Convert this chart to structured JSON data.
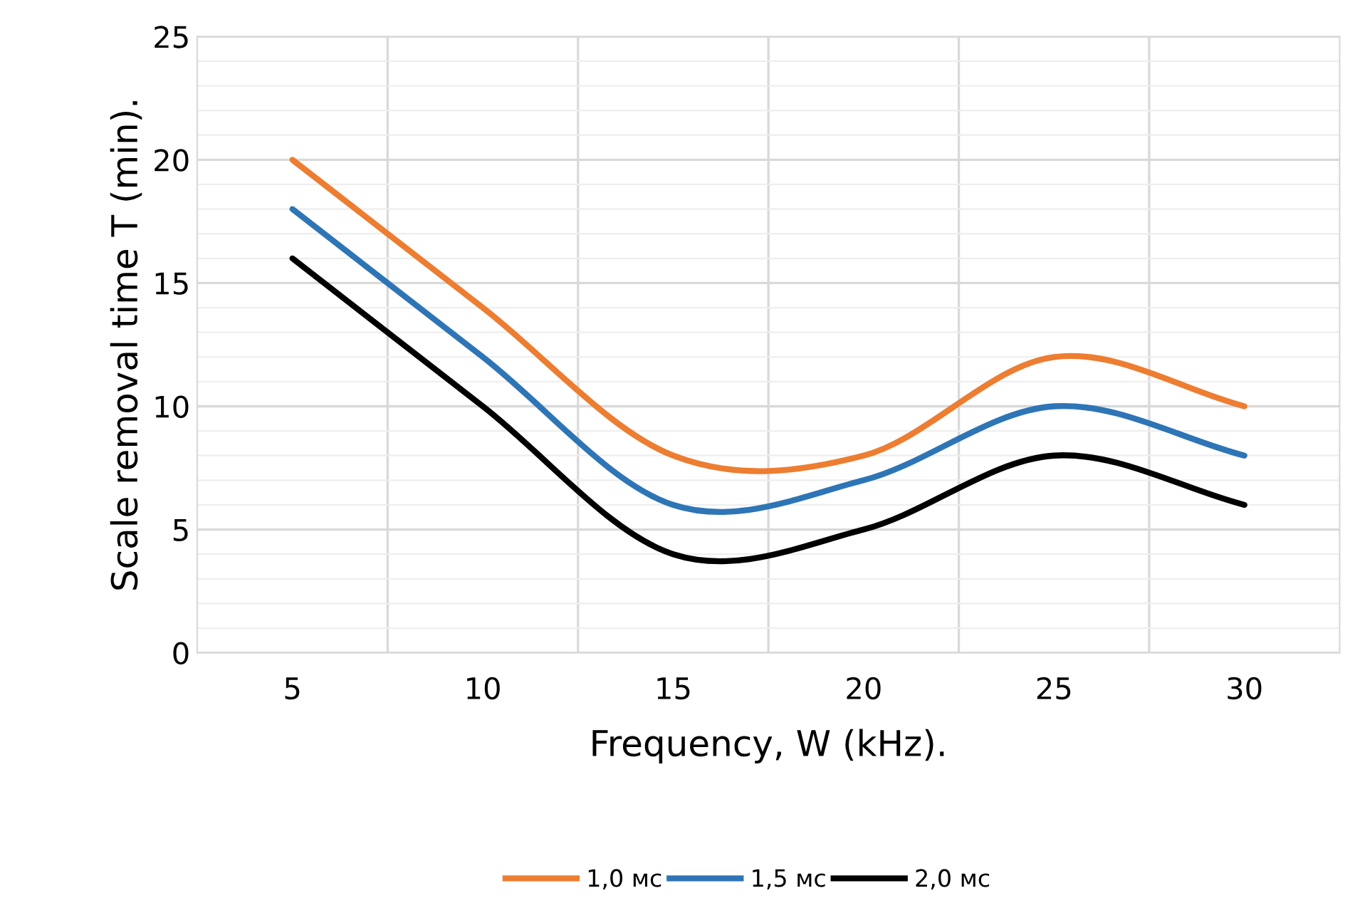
{
  "chart_data": {
    "type": "line",
    "xlabel": "Frequency, W (kHz).",
    "ylabel": "Scale removal time T (min).",
    "categories": [
      "5",
      "10",
      "15",
      "20",
      "25",
      "30"
    ],
    "series": [
      {
        "name": "1,0 мс",
        "color": "#ed7d31",
        "values": [
          20,
          14,
          8,
          8,
          12,
          10
        ]
      },
      {
        "name": "1,5 мс",
        "color": "#2e75b6",
        "values": [
          18,
          12,
          6,
          7,
          10,
          8
        ]
      },
      {
        "name": "2,0 мс",
        "color": "#000000",
        "values": [
          16,
          10,
          4,
          5,
          8,
          6
        ]
      }
    ],
    "ylim": [
      0,
      25
    ],
    "yticks": [
      0,
      5,
      10,
      15,
      20,
      25
    ],
    "grid": true,
    "legend": "bottom",
    "marker": "none",
    "line_style": "solid"
  }
}
